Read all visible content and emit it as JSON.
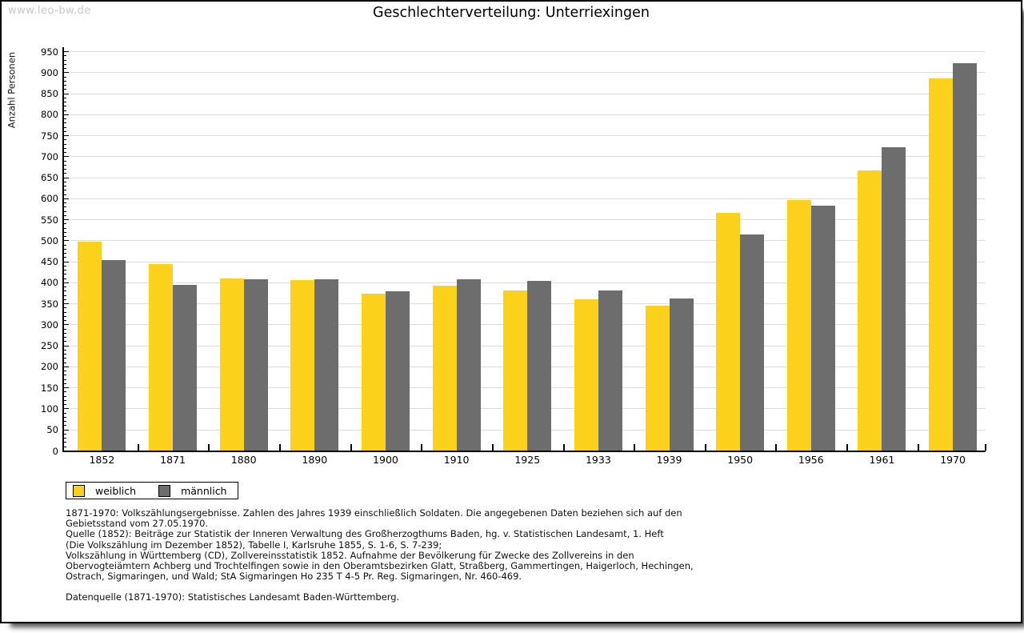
{
  "watermark": "www.leo-bw.de",
  "title": "Geschlechterverteilung: Unterriexingen",
  "chart_data": {
    "type": "bar",
    "title": "Geschlechterverteilung: Unterriexingen",
    "ylabel": "Anzahl Personen",
    "xlabel": "",
    "categories": [
      "1852",
      "1871",
      "1880",
      "1890",
      "1900",
      "1910",
      "1925",
      "1933",
      "1939",
      "1950",
      "1956",
      "1961",
      "1970"
    ],
    "series": [
      {
        "name": "weiblich",
        "color": "#fcd11c",
        "values": [
          497,
          443,
          410,
          406,
          373,
          392,
          380,
          360,
          344,
          566,
          595,
          666,
          886
        ]
      },
      {
        "name": "männlich",
        "color": "#6d6d6d",
        "values": [
          453,
          395,
          408,
          408,
          378,
          408,
          404,
          381,
          361,
          514,
          583,
          721,
          922
        ]
      }
    ],
    "ylim": [
      0,
      950
    ],
    "ytick_step": 50,
    "minor_tick_step": 10,
    "grid": true,
    "legend_position": "bottom-left"
  },
  "legend": {
    "items": [
      {
        "label": "weiblich",
        "color": "#fcd11c"
      },
      {
        "label": "männlich",
        "color": "#6d6d6d"
      }
    ]
  },
  "footnotes": {
    "lines": [
      "1871-1970: Volkszählungsergebnisse. Zahlen des Jahres 1939 einschließlich Soldaten. Die angegebenen Daten beziehen sich auf den",
      "Gebietsstand vom 27.05.1970.",
      "Quelle (1852): Beiträge zur Statistik der Inneren Verwaltung des Großherzogthums Baden, hg. v. Statistischen Landesamt, 1. Heft",
      "(Die Volkszählung im Dezember 1852), Tabelle I, Karlsruhe 1855, S. 1-6, S. 7-239;",
      "Volkszählung in Württemberg (CD), Zollvereinsstatistik 1852. Aufnahme der Bevölkerung für Zwecke des Zollvereins in den",
      "Obervogteiämtern Achberg und Trochtelfingen sowie in den Oberamtsbezirken Glatt, Straßberg, Gammertingen, Haigerloch, Hechingen,",
      "Ostrach, Sigmaringen, und Wald; StA Sigmaringen Ho 235 T 4-5 Pr. Reg. Sigmaringen, Nr. 460-469."
    ],
    "datasource": "Datenquelle (1871-1970): Statistisches Landesamt Baden-Württemberg."
  },
  "colors": {
    "grid": "#dcdcdc",
    "axis": "#000000",
    "watermark": "#c8c8c8",
    "background": "#ffffff"
  }
}
